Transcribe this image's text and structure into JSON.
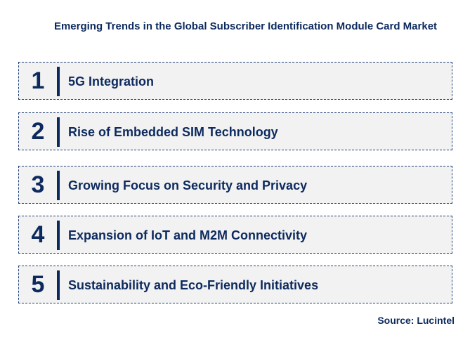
{
  "title": "Emerging Trends in the Global Subscriber Identification Module Card Market",
  "items": [
    {
      "num": "1",
      "label": "5G Integration"
    },
    {
      "num": "2",
      "label": "Rise of Embedded SIM Technology"
    },
    {
      "num": "3",
      "label": "Growing Focus on Security and Privacy"
    },
    {
      "num": "4",
      "label": "Expansion of IoT and M2M Connectivity"
    },
    {
      "num": "5",
      "label": "Sustainability and Eco-Friendly Initiatives"
    }
  ],
  "source": "Source: Lucintel",
  "colors": {
    "text": "#0d2a5e",
    "box": "#f2f2f2"
  }
}
